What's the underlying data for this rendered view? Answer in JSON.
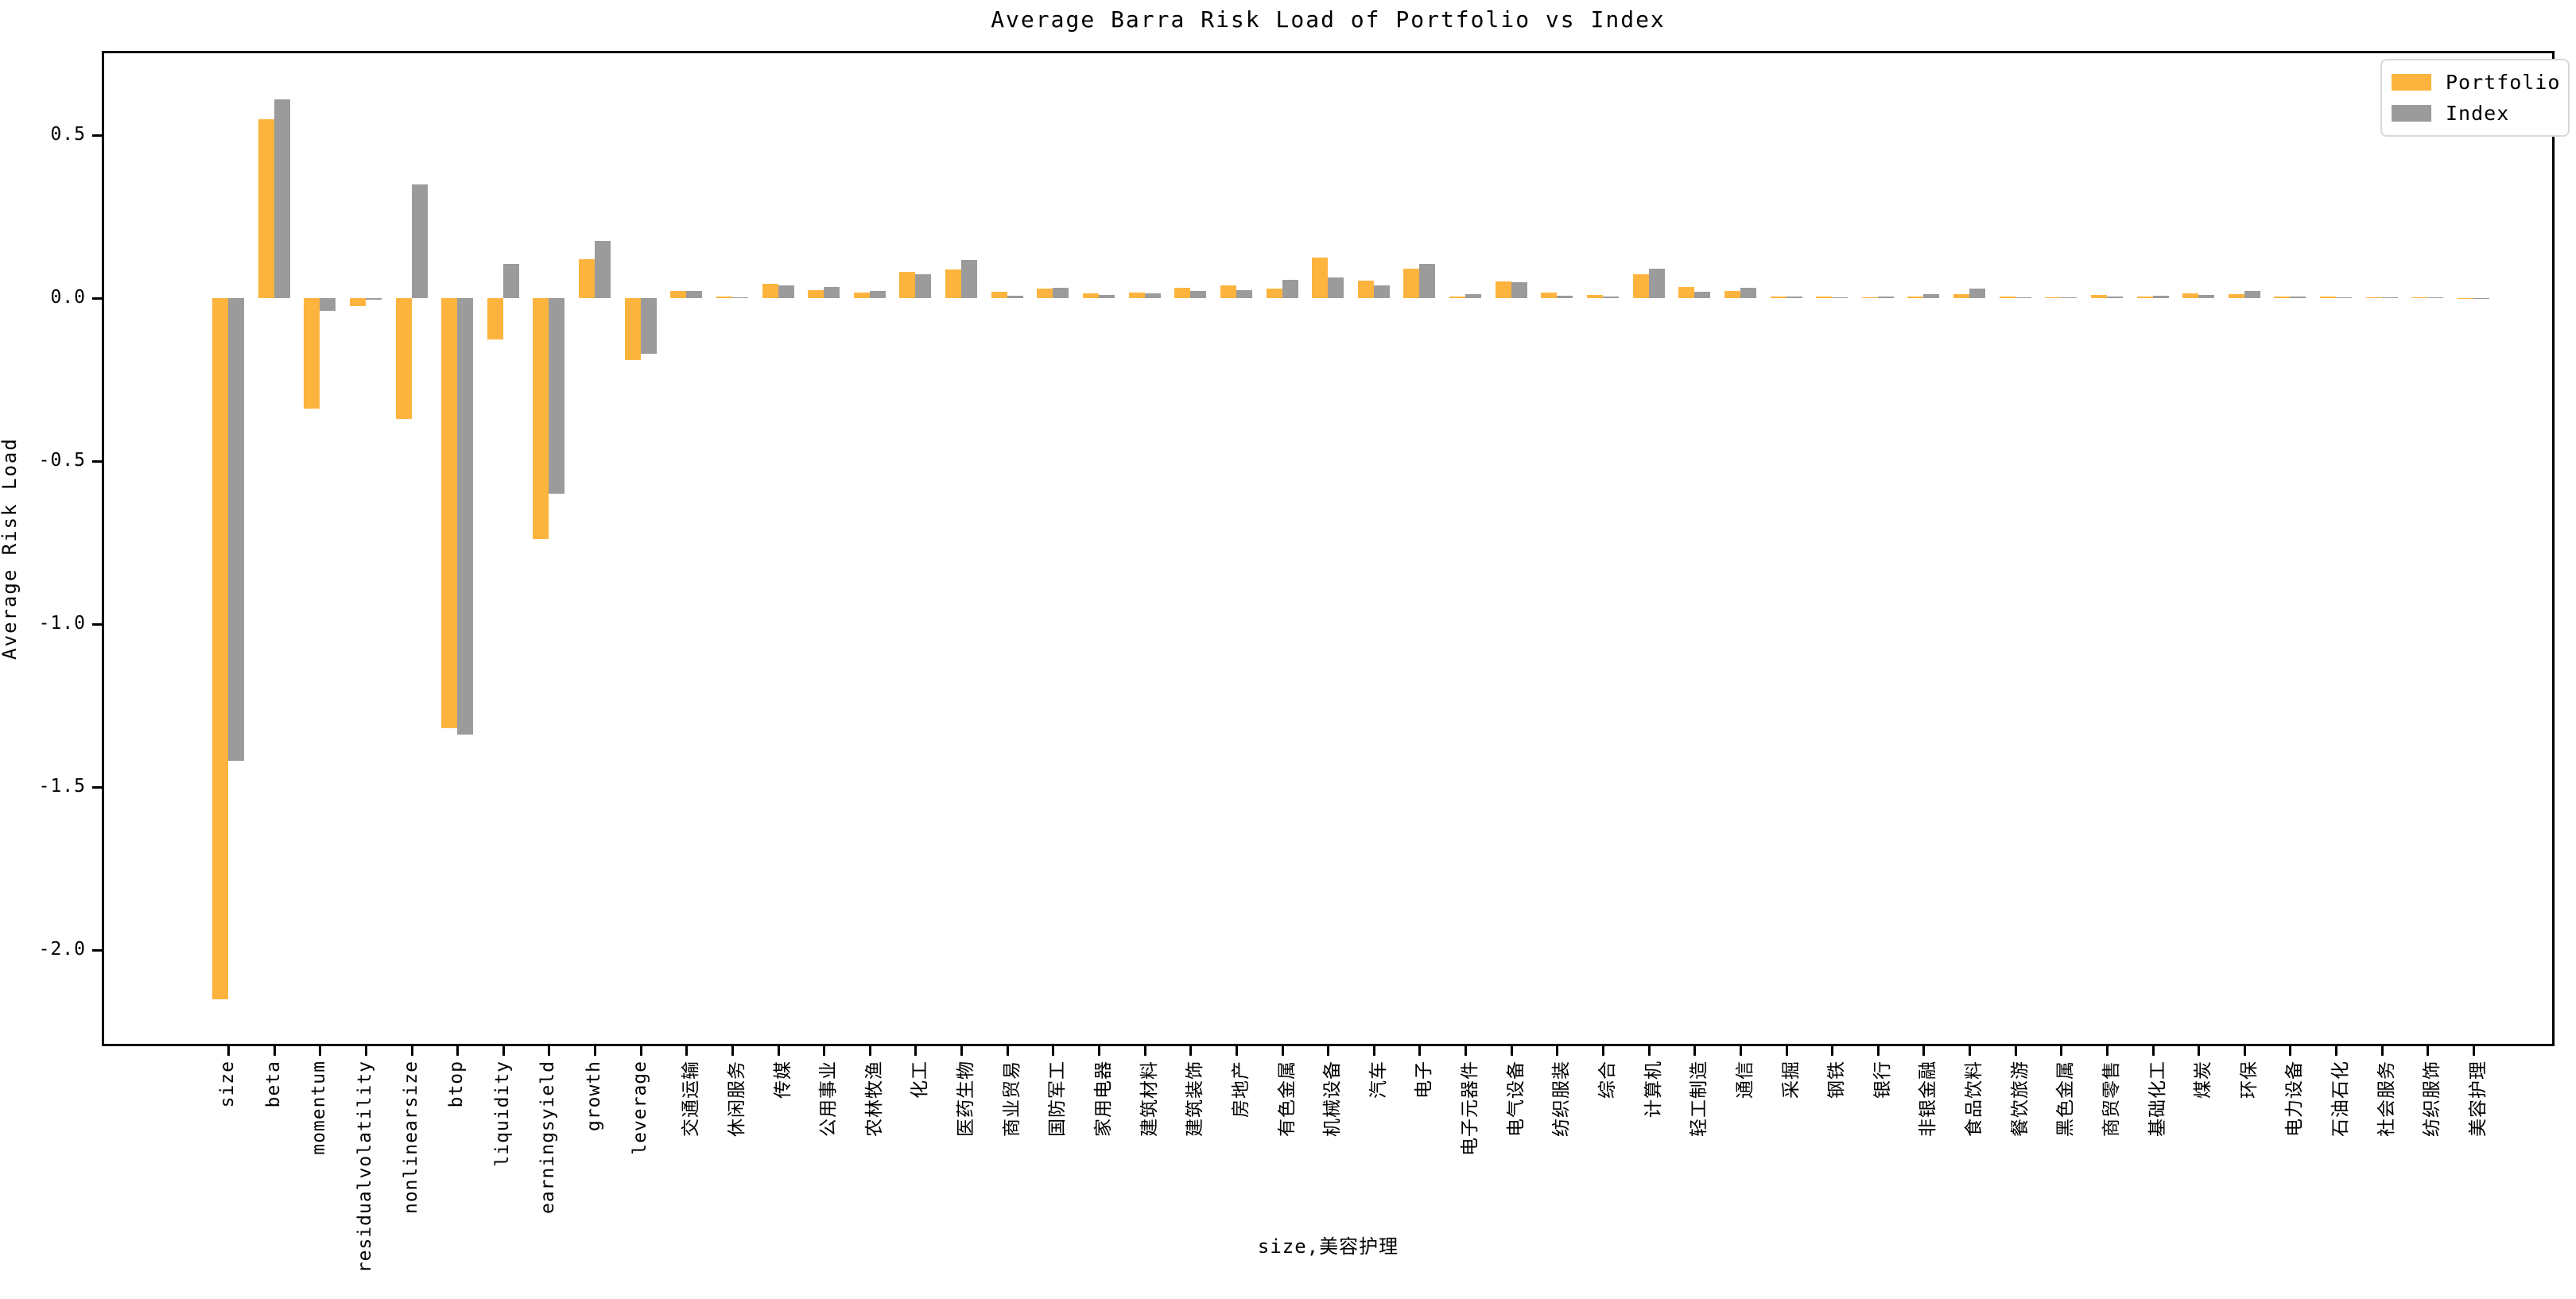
{
  "chart_data": {
    "type": "bar",
    "title": "Average Barra Risk Load of Portfolio vs Index",
    "xlabel": "size,美容护理",
    "ylabel": "Average Risk Load",
    "ytick_labels": [
      "0.5",
      "0.0",
      "-0.5",
      "-1.0",
      "-1.5",
      "-2.0"
    ],
    "ytick_values": [
      0.5,
      0.0,
      -0.5,
      -1.0,
      -1.5,
      -2.0
    ],
    "ylim": [
      -2.3,
      0.76
    ],
    "grid": false,
    "legend_position": "upper right",
    "categories": [
      "size",
      "beta",
      "momentum",
      "residualvolatility",
      "nonlinearsize",
      "btop",
      "liquidity",
      "earningsyield",
      "growth",
      "leverage",
      "交通运输",
      "休闲服务",
      "传媒",
      "公用事业",
      "农林牧渔",
      "化工",
      "医药生物",
      "商业贸易",
      "国防军工",
      "家用电器",
      "建筑材料",
      "建筑装饰",
      "房地产",
      "有色金属",
      "机械设备",
      "汽车",
      "电子",
      "电子元器件",
      "电气设备",
      "纺织服装",
      "综合",
      "计算机",
      "轻工制造",
      "通信",
      "采掘",
      "钢铁",
      "银行",
      "非银金融",
      "食品饮料",
      "餐饮旅游",
      "黑色金属",
      "商贸零售",
      "基础化工",
      "煤炭",
      "环保",
      "电力设备",
      "石油石化",
      "社会服务",
      "纺织服饰",
      "美容护理"
    ],
    "series": [
      {
        "name": "Portfolio",
        "color": "#FDB43E",
        "values": [
          -2.15,
          0.55,
          -0.34,
          -0.025,
          -0.37,
          -1.32,
          -0.127,
          -0.74,
          0.12,
          -0.19,
          0.021,
          0.005,
          0.045,
          0.025,
          0.016,
          0.08,
          0.088,
          0.02,
          0.03,
          0.015,
          0.016,
          0.031,
          0.038,
          0.03,
          0.125,
          0.054,
          0.09,
          0.005,
          0.051,
          0.017,
          0.01,
          0.073,
          0.034,
          0.023,
          0.006,
          0.004,
          0.003,
          0.006,
          0.012,
          0.005,
          0.002,
          0.009,
          0.004,
          0.014,
          0.012,
          0.006,
          0.005,
          0.002,
          0.002,
          0.001
        ]
      },
      {
        "name": "Index",
        "color": "#9B9B9B",
        "values": [
          -1.42,
          0.61,
          -0.04,
          -0.005,
          0.35,
          -1.34,
          0.105,
          -0.6,
          0.175,
          -0.17,
          0.023,
          0.002,
          0.04,
          0.035,
          0.021,
          0.072,
          0.116,
          0.008,
          0.032,
          0.01,
          0.014,
          0.023,
          0.024,
          0.056,
          0.064,
          0.04,
          0.104,
          0.011,
          0.048,
          0.008,
          0.004,
          0.09,
          0.019,
          0.032,
          0.006,
          0.002,
          0.006,
          0.012,
          0.03,
          0.003,
          0.002,
          0.006,
          0.007,
          0.009,
          0.021,
          0.006,
          0.002,
          0.002,
          0.002,
          0.001
        ]
      }
    ]
  }
}
